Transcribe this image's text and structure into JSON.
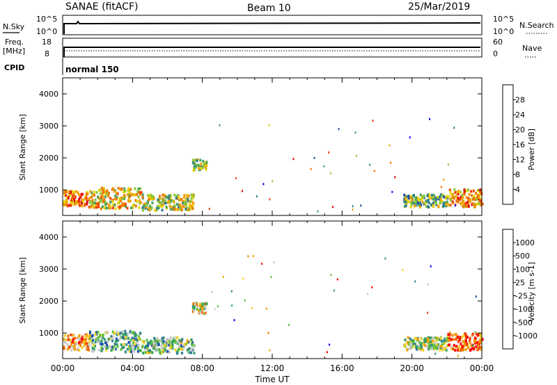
{
  "header": {
    "title": "SANAE (fitACF)",
    "beam": "Beam 10",
    "date": "25/Mar/2019"
  },
  "summary": {
    "nsky_label": "N.Sky",
    "nsearch_label": "N.Search",
    "nsky_ticks": [
      "10^5",
      "10^0"
    ],
    "nsearch_ticks": [
      "10^5",
      "10^0"
    ],
    "freq_label_1": "Freq.",
    "freq_label_2": "[MHz]",
    "freq_ticks": [
      "18",
      "8"
    ],
    "nave_label": "Nave",
    "nave_ticks": [
      "60",
      "0"
    ],
    "cpid_label": "CPID",
    "cpid_value": "normal 150"
  },
  "colors": {
    "power": [
      "#0000ff",
      "#1f4fa8",
      "#2f7f8f",
      "#4fa060",
      "#88c83c",
      "#e8d000",
      "#f0a000",
      "#f07800",
      "#f04000",
      "#e00000"
    ],
    "velocity": [
      "#ff0000",
      "#f04000",
      "#f07800",
      "#f0a000",
      "#f0d020",
      "#c8c8c8",
      "#60c040",
      "#30a060",
      "#2f7f8f",
      "#1f4fa8",
      "#0000ff"
    ]
  },
  "chart_data": [
    {
      "type": "heatmap",
      "panel": "power",
      "ylabel": "Slant Range [km]",
      "ylim": [
        200,
        4500
      ],
      "yticks": [
        "4000",
        "3000",
        "2000",
        "1000"
      ],
      "colorbar_label": "Power [dB]",
      "colorbar_ticks": [
        "28",
        "24",
        "20",
        "16",
        "12",
        "8",
        "4"
      ],
      "colorbar_range": [
        0,
        32
      ],
      "xlim_hours": [
        0,
        24
      ],
      "regions": [
        {
          "t0": 0.0,
          "t1": 1.5,
          "r0": 500,
          "r1": 1000,
          "level": 0.75
        },
        {
          "t0": 1.5,
          "t1": 4.5,
          "r0": 450,
          "r1": 1100,
          "level": 0.6
        },
        {
          "t0": 4.5,
          "t1": 7.5,
          "r0": 400,
          "r1": 900,
          "level": 0.5
        },
        {
          "t0": 7.4,
          "t1": 8.2,
          "r0": 1650,
          "r1": 2000,
          "level": 0.45
        },
        {
          "t0": 19.5,
          "t1": 22.0,
          "r0": 500,
          "r1": 900,
          "level": 0.4
        },
        {
          "t0": 22.0,
          "t1": 24.0,
          "r0": 500,
          "r1": 1050,
          "level": 0.7
        }
      ]
    },
    {
      "type": "heatmap",
      "panel": "velocity",
      "ylabel": "Slant Range [km]",
      "ylim": [
        200,
        4500
      ],
      "yticks": [
        "4000",
        "3000",
        "2000",
        "1000"
      ],
      "colorbar_label": "Velocity [m s-1]",
      "colorbar_ticks": [
        "1000",
        "500",
        "100",
        "25",
        "-25",
        "-100",
        "-500",
        "-1000"
      ],
      "xlim_hours": [
        0,
        24
      ],
      "regions": [
        {
          "t0": 0.0,
          "t1": 1.5,
          "r0": 500,
          "r1": 1000,
          "level": 0.3
        },
        {
          "t0": 1.5,
          "t1": 4.5,
          "r0": 450,
          "r1": 1100,
          "level": 0.65
        },
        {
          "t0": 4.5,
          "t1": 7.5,
          "r0": 400,
          "r1": 900,
          "level": 0.6
        },
        {
          "t0": 7.4,
          "t1": 8.2,
          "r0": 1650,
          "r1": 2000,
          "level": 0.45
        },
        {
          "t0": 19.5,
          "t1": 22.0,
          "r0": 500,
          "r1": 900,
          "level": 0.55
        },
        {
          "t0": 22.0,
          "t1": 24.0,
          "r0": 500,
          "r1": 1050,
          "level": 0.2
        }
      ]
    }
  ],
  "xaxis": {
    "label": "Time UT",
    "ticks": [
      "00:00",
      "04:00",
      "08:00",
      "12:00",
      "16:00",
      "20:00",
      "00:00"
    ]
  }
}
